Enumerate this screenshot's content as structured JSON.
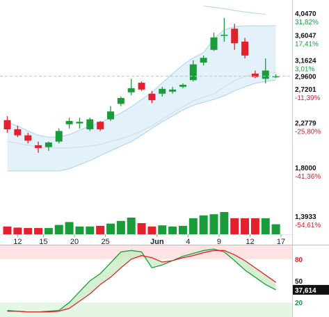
{
  "chart_data": {
    "type": "candlestick",
    "x_ticks": [
      {
        "label": "12",
        "bold": false,
        "idx": 1
      },
      {
        "label": "15",
        "bold": false,
        "idx": 3.5
      },
      {
        "label": "20",
        "bold": false,
        "idx": 6.5
      },
      {
        "label": "25",
        "bold": false,
        "idx": 9.5
      },
      {
        "label": "Jun",
        "bold": true,
        "idx": 14.5
      },
      {
        "label": "4",
        "bold": false,
        "idx": 17.5
      },
      {
        "label": "9",
        "bold": false,
        "idx": 20.5
      },
      {
        "label": "12",
        "bold": false,
        "idx": 23.5
      },
      {
        "label": "17",
        "bold": false,
        "idx": 26.5
      }
    ],
    "price_axis": {
      "type": "log",
      "ticks": [
        {
          "price": "4,0470",
          "pct": "31,82%",
          "value": 4.047
        },
        {
          "price": "3,6047",
          "pct": "17,41%",
          "value": 3.6047
        },
        {
          "price": "3,1624",
          "pct": "3,01%",
          "value": 3.1624
        },
        {
          "price": "2,7201",
          "pct": "-11,39%",
          "value": 2.7201
        },
        {
          "price": "2,2779",
          "pct": "-25,80%",
          "value": 2.2779
        },
        {
          "price": "1,8000",
          "pct": "-41,36%",
          "value": 1.8
        },
        {
          "price": "1,3933",
          "pct": "-54,61%",
          "value": 1.3933
        }
      ],
      "last_price": "2,9600",
      "last_value": 2.96
    },
    "candles": [
      {
        "o": 2.35,
        "h": 2.4,
        "l": 2.2,
        "c": 2.24
      },
      {
        "o": 2.24,
        "h": 2.28,
        "l": 2.15,
        "c": 2.17
      },
      {
        "o": 2.17,
        "h": 2.2,
        "l": 2.08,
        "c": 2.11
      },
      {
        "o": 2.06,
        "h": 2.1,
        "l": 1.98,
        "c": 2.03
      },
      {
        "o": 2.04,
        "h": 2.1,
        "l": 2.0,
        "c": 2.09
      },
      {
        "o": 2.1,
        "h": 2.25,
        "l": 2.08,
        "c": 2.22
      },
      {
        "o": 2.3,
        "h": 2.38,
        "l": 2.25,
        "c": 2.34
      },
      {
        "o": 2.31,
        "h": 2.38,
        "l": 2.25,
        "c": 2.33
      },
      {
        "o": 2.24,
        "h": 2.38,
        "l": 2.22,
        "c": 2.36
      },
      {
        "o": 2.33,
        "h": 2.34,
        "l": 2.22,
        "c": 2.24
      },
      {
        "o": 2.36,
        "h": 2.53,
        "l": 2.34,
        "c": 2.46
      },
      {
        "o": 2.56,
        "h": 2.66,
        "l": 2.53,
        "c": 2.64
      },
      {
        "o": 2.72,
        "h": 2.92,
        "l": 2.68,
        "c": 2.78
      },
      {
        "o": 2.86,
        "h": 2.88,
        "l": 2.74,
        "c": 2.76
      },
      {
        "o": 2.7,
        "h": 2.74,
        "l": 2.57,
        "c": 2.61
      },
      {
        "o": 2.7,
        "h": 2.8,
        "l": 2.66,
        "c": 2.77
      },
      {
        "o": 2.73,
        "h": 2.8,
        "l": 2.7,
        "c": 2.76
      },
      {
        "o": 2.8,
        "h": 2.85,
        "l": 2.78,
        "c": 2.83
      },
      {
        "o": 2.9,
        "h": 3.22,
        "l": 2.88,
        "c": 3.15
      },
      {
        "o": 3.18,
        "h": 3.3,
        "l": 3.13,
        "c": 3.26
      },
      {
        "o": 3.4,
        "h": 3.72,
        "l": 3.38,
        "c": 3.63
      },
      {
        "o": 3.67,
        "h": 4.02,
        "l": 3.55,
        "c": 3.68
      },
      {
        "o": 3.8,
        "h": 3.9,
        "l": 3.4,
        "c": 3.52
      },
      {
        "o": 3.55,
        "h": 3.62,
        "l": 3.25,
        "c": 3.3
      },
      {
        "o": 3.0,
        "h": 3.05,
        "l": 2.93,
        "c": 2.95
      },
      {
        "o": 2.92,
        "h": 3.25,
        "l": 2.85,
        "c": 3.05
      },
      {
        "o": 2.96,
        "h": 2.99,
        "l": 2.93,
        "c": 2.96
      }
    ],
    "bollinger": {
      "upper": [
        2.32,
        2.28,
        2.22,
        2.17,
        2.15,
        2.15,
        2.18,
        2.23,
        2.28,
        2.32,
        2.38,
        2.44,
        2.52,
        2.62,
        2.72,
        2.86,
        3.0,
        3.14,
        3.26,
        3.35,
        3.6,
        3.78,
        3.84,
        3.86,
        3.86,
        3.86,
        3.86
      ],
      "middle": [
        2.1,
        2.08,
        2.06,
        2.04,
        2.03,
        2.03,
        2.03,
        2.04,
        2.05,
        2.07,
        2.1,
        2.13,
        2.17,
        2.22,
        2.28,
        2.36,
        2.44,
        2.52,
        2.6,
        2.65,
        2.7,
        2.8,
        2.89,
        2.96,
        3.0,
        3.02,
        3.02
      ],
      "lower": [
        1.8,
        1.8,
        1.8,
        1.8,
        1.8,
        1.8,
        1.82,
        1.86,
        1.9,
        1.95,
        2.0,
        2.05,
        2.1,
        2.17,
        2.25,
        2.33,
        2.4,
        2.48,
        2.54,
        2.58,
        2.62,
        2.67,
        2.74,
        2.8,
        2.85,
        2.88,
        2.9
      ],
      "ma_outer": [
        null,
        null,
        null,
        null,
        null,
        null,
        null,
        null,
        null,
        null,
        null,
        null,
        null,
        null,
        null,
        null,
        null,
        null,
        null,
        4.28,
        4.25,
        4.22,
        4.18,
        4.15,
        4.12,
        4.1,
        null
      ]
    },
    "volume": [
      0.35,
      0.3,
      0.28,
      0.28,
      0.28,
      0.42,
      0.55,
      0.35,
      0.35,
      0.38,
      0.48,
      0.6,
      0.75,
      0.5,
      0.35,
      0.4,
      0.35,
      0.38,
      0.72,
      0.85,
      0.9,
      1.0,
      0.72,
      0.72,
      0.72,
      0.72,
      0.45
    ],
    "oscillator": {
      "k": [
        9,
        8,
        7,
        7,
        8,
        9,
        20,
        35,
        50,
        60,
        75,
        90,
        92,
        90,
        68,
        72,
        78,
        84,
        88,
        92,
        94,
        90,
        78,
        65,
        55,
        45,
        37.6
      ],
      "d": [
        8,
        8,
        7,
        7,
        7,
        8,
        12,
        22,
        32,
        45,
        55,
        68,
        80,
        85,
        82,
        76,
        78,
        82,
        85,
        89,
        92,
        92,
        86,
        78,
        68,
        58,
        48
      ],
      "levels": [
        {
          "value": 80,
          "label": "80",
          "color": "#d6202a"
        },
        {
          "value": 50,
          "label": "50",
          "color": "#111"
        },
        {
          "value": 20,
          "label": "20",
          "color": "#1a9c3a"
        }
      ],
      "last_label": "37,614"
    }
  },
  "colors": {
    "up": "#1a9c3a",
    "down": "#e4202c",
    "band_fill": "#e3f1fb",
    "band_line": "#a7d3ee",
    "ma_line": "#d8d8d8",
    "last_line": "#9fd5c9"
  }
}
